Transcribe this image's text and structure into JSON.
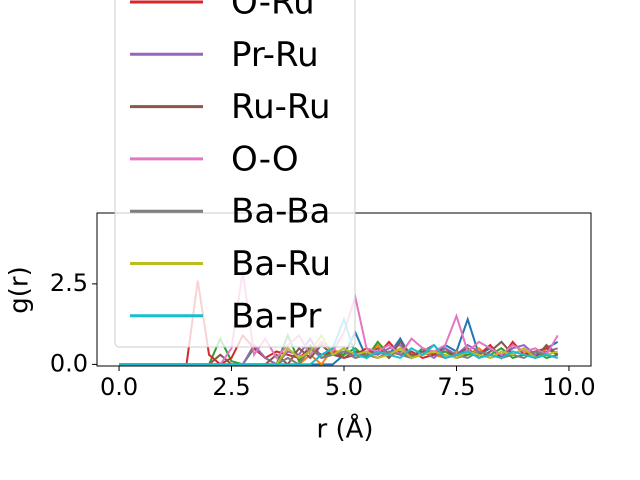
{
  "chart_data": {
    "type": "line",
    "x_label": "r (Å)",
    "y_label": "g(r)",
    "x": [
      0,
      0.25,
      0.5,
      0.75,
      1,
      1.25,
      1.5,
      1.75,
      2,
      2.25,
      2.5,
      2.75,
      3,
      3.25,
      3.5,
      3.75,
      4,
      4.25,
      4.5,
      4.75,
      5,
      5.25,
      5.5,
      5.75,
      6,
      6.25,
      6.5,
      6.75,
      7,
      7.25,
      7.5,
      7.75,
      8,
      8.25,
      8.5,
      8.75,
      9,
      9.25,
      9.5,
      9.75
    ],
    "series": [
      {
        "color": "#1f77b4",
        "values": [
          0,
          0,
          0,
          0,
          0,
          0,
          0,
          0,
          0,
          0,
          0,
          0,
          0,
          0,
          0,
          0,
          0,
          0,
          0,
          0,
          0.3,
          1.0,
          0.2,
          0.4,
          0.3,
          0.8,
          0.2,
          0.5,
          0.3,
          0.6,
          0.4,
          1.4,
          0.3,
          0.5,
          0.2,
          0.6,
          0.4,
          0.3,
          0.5,
          0.7
        ]
      },
      {
        "color": "#ff7f0e",
        "values": [
          0,
          0,
          0,
          0,
          0,
          0,
          0,
          0,
          0,
          0,
          0,
          0,
          0,
          0,
          0,
          0,
          0,
          0.3,
          0,
          0.5,
          0.2,
          0.4,
          0.3,
          0.6,
          0.2,
          0.5,
          0.3,
          0.4,
          0.3,
          0.2,
          0.4,
          0.3,
          0.5,
          0.2,
          0.3,
          0.6,
          0.4,
          0.2,
          0.5,
          0.3
        ]
      },
      {
        "color": "#2ca02c",
        "values": [
          0,
          0,
          0,
          0,
          0,
          0,
          0,
          0,
          0,
          0.8,
          0.1,
          0,
          0.5,
          0.2,
          0,
          0.9,
          0.1,
          0.6,
          0.2,
          0.4,
          0.3,
          0.5,
          0.2,
          0.7,
          0.3,
          0.4,
          0.2,
          0.5,
          0.3,
          0.4,
          0.2,
          0.3,
          0.4,
          0.3,
          0.5,
          0.2,
          0.3,
          0.4,
          0.2,
          0.3
        ]
      },
      {
        "name": "O-Ru",
        "color": "#d62728",
        "values": [
          0,
          0,
          0,
          0,
          0,
          0,
          0,
          2.6,
          0.3,
          0,
          0.2,
          0.9,
          0.5,
          0.2,
          0.4,
          0.3,
          0.2,
          0.5,
          0.3,
          0.4,
          0.2,
          0.3,
          0.5,
          0.3,
          0.7,
          0.3,
          0.4,
          0.2,
          0.3,
          0.5,
          0.2,
          0.4,
          0.3,
          0.6,
          0.2,
          0.7,
          0.3,
          0.4,
          0.5,
          0.3
        ]
      },
      {
        "name": "Pr-Ru",
        "color": "#9467bd",
        "values": [
          0,
          0,
          0,
          0,
          0,
          0,
          0,
          0,
          0,
          0,
          0,
          0,
          0.6,
          0.2,
          0,
          0.4,
          0.3,
          0.8,
          0.2,
          0.3,
          0.5,
          0.2,
          0.4,
          0.3,
          0.5,
          0.6,
          0.3,
          0.4,
          0.2,
          0.5,
          0.3,
          0.6,
          0.4,
          0.3,
          0.2,
          0.5,
          0.6,
          0.3,
          0.4,
          0.5
        ]
      },
      {
        "name": "Ru-Ru",
        "color": "#8c564b",
        "values": [
          0,
          0,
          0,
          0,
          0,
          0,
          0,
          0,
          0,
          0.3,
          0,
          0,
          0,
          0,
          0.3,
          0,
          0.5,
          0.2,
          0.6,
          0.3,
          0.2,
          0.4,
          0.3,
          0.5,
          0.2,
          0.7,
          0.3,
          0.4,
          0.6,
          0.2,
          0.3,
          0.5,
          0.2,
          0.4,
          0.7,
          0.3,
          0.5,
          0.2,
          0.6,
          0.3
        ]
      },
      {
        "name": "O-O",
        "color": "#e377c2",
        "values": [
          0,
          0,
          0,
          0,
          0,
          0,
          0,
          0,
          0,
          0,
          0.5,
          2.9,
          0.3,
          0.8,
          0.2,
          0.6,
          0.9,
          0.3,
          0.7,
          0.4,
          1.0,
          2.1,
          0.5,
          0.4,
          0.6,
          0.3,
          0.8,
          0.5,
          0.4,
          0.6,
          1.5,
          0.4,
          0.7,
          0.5,
          0.3,
          0.6,
          0.4,
          0.5,
          0.3,
          0.9
        ]
      },
      {
        "name": "Ba-Ba",
        "color": "#7f7f7f",
        "values": [
          0,
          0,
          0,
          0,
          0,
          0,
          0,
          0,
          0,
          0,
          0,
          0,
          0,
          0,
          0,
          0.2,
          0,
          0.5,
          0.2,
          0.3,
          0.4,
          0.2,
          0.3,
          0.2,
          0.4,
          0.3,
          0.2,
          0.3,
          0.4,
          0.2,
          0.3,
          0.2,
          0.4,
          0.3,
          0.2,
          0.3,
          0.2,
          0.4,
          0.3,
          0.2
        ]
      },
      {
        "name": "Ba-Ru",
        "color": "#bcbd22",
        "values": [
          0,
          0,
          0,
          0,
          0,
          0,
          0,
          0,
          0,
          0,
          0,
          0,
          0,
          0,
          0,
          0.5,
          0.2,
          0.4,
          0.9,
          0.3,
          0.5,
          0.3,
          0.4,
          0.2,
          0.3,
          0.5,
          0.2,
          0.3,
          0.4,
          0.3,
          0.2,
          0.4,
          0.3,
          0.2,
          0.4,
          0.3,
          0.5,
          0.2,
          0.3,
          0.4
        ]
      },
      {
        "name": "Ba-Pr",
        "color": "#17becf",
        "values": [
          0,
          0,
          0,
          0,
          0,
          0,
          0,
          0,
          0,
          0,
          0,
          0,
          0,
          0,
          0,
          0,
          0,
          0,
          0.3,
          0.5,
          1.4,
          0.3,
          0.2,
          0.4,
          0.3,
          0.2,
          0.5,
          0.3,
          0.6,
          0.2,
          0.3,
          0.4,
          0.2,
          0.3,
          0.2,
          0.4,
          0.3,
          0.2,
          0.3,
          0.2
        ]
      }
    ],
    "xlim": [
      -0.49,
      10.49
    ],
    "ylim": [
      -0.05,
      4.7
    ],
    "xticks": [
      {
        "value": 0,
        "label": "0.0"
      },
      2.5,
      {
        "value": 5,
        "label": "5.0"
      },
      7.5,
      {
        "value": 10,
        "label": "10.0"
      }
    ],
    "yticks": [
      {
        "value": 0,
        "label": "0.0"
      },
      2.5
    ],
    "legend": "upper left"
  }
}
